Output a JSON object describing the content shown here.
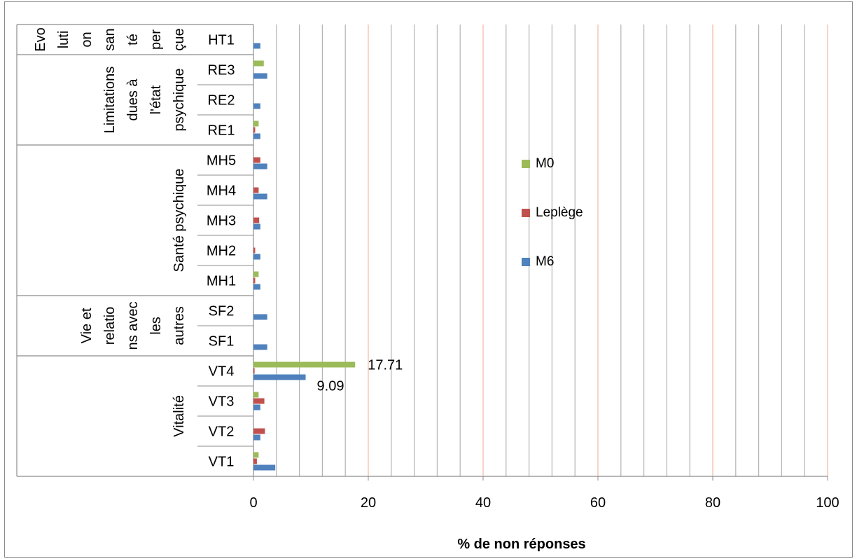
{
  "chart_data": {
    "type": "bar",
    "orientation": "horizontal",
    "xlabel": "% de non réponses",
    "xlim": [
      0,
      100
    ],
    "x_ticks": [
      "0",
      "20",
      "40",
      "60",
      "80",
      "100"
    ],
    "grid": true,
    "legend_position": "right",
    "groups": [
      {
        "id": "evolution",
        "label_lines": [
          "Evo",
          "luti",
          "on",
          "san",
          "té",
          "per",
          "çue"
        ],
        "items": [
          "HT1"
        ]
      },
      {
        "id": "limitations",
        "label_lines": [
          "Limitations",
          "dues à",
          "l'état",
          "psychique"
        ],
        "items": [
          "RE3",
          "RE2",
          "RE1"
        ]
      },
      {
        "id": "sante",
        "label_lines": [
          "Santé psychique"
        ],
        "items": [
          "MH5",
          "MH4",
          "MH3",
          "MH2",
          "MH1"
        ]
      },
      {
        "id": "vie",
        "label_lines": [
          "Vie et",
          "relatio",
          "ns avec",
          "les",
          "autres"
        ],
        "items": [
          "SF2",
          "SF1"
        ]
      },
      {
        "id": "vitalite",
        "label_lines": [
          "Vitalité"
        ],
        "items": [
          "VT4",
          "VT3",
          "VT2",
          "VT1"
        ]
      }
    ],
    "categories": [
      "HT1",
      "RE3",
      "RE2",
      "RE1",
      "MH5",
      "MH4",
      "MH3",
      "MH2",
      "MH1",
      "SF2",
      "SF1",
      "VT4",
      "VT3",
      "VT2",
      "VT1"
    ],
    "series": [
      {
        "name": "M0",
        "color": "#9bbb59",
        "values": [
          0,
          1.8,
          0,
          0.9,
          0,
          0,
          0,
          0,
          0.9,
          0,
          0,
          17.71,
          0.9,
          0,
          0.9
        ]
      },
      {
        "name": "Leplège",
        "color": "#c0504d",
        "values": [
          0,
          0,
          0,
          0.3,
          1.2,
          0.9,
          1.0,
          0.3,
          0.3,
          0,
          0,
          0.2,
          1.9,
          2.0,
          0.6
        ]
      },
      {
        "name": "M6",
        "color": "#4f81bd",
        "values": [
          1.2,
          2.4,
          1.2,
          1.2,
          2.4,
          2.4,
          1.2,
          1.2,
          1.2,
          2.4,
          2.4,
          9.09,
          1.2,
          1.2,
          3.8
        ]
      }
    ],
    "data_labels": [
      {
        "category": "VT4",
        "series": "M0",
        "text": "17.71"
      },
      {
        "category": "VT4",
        "series": "M6",
        "text": "9.09"
      }
    ]
  }
}
